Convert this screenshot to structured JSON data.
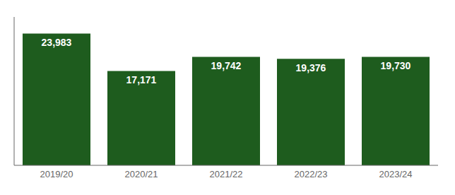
{
  "chart_data": {
    "type": "bar",
    "categories": [
      "2019/20",
      "2020/21",
      "2021/22",
      "2022/23",
      "2023/24"
    ],
    "values": [
      23983,
      17171,
      19742,
      19376,
      19730
    ],
    "value_labels": [
      "23,983",
      "17,171",
      "19,742",
      "19,376",
      "19,730"
    ],
    "data_labels": true,
    "color": "#1e5c1e",
    "ylim": [
      0,
      27000
    ],
    "tick_labels": "x",
    "grid": false
  }
}
